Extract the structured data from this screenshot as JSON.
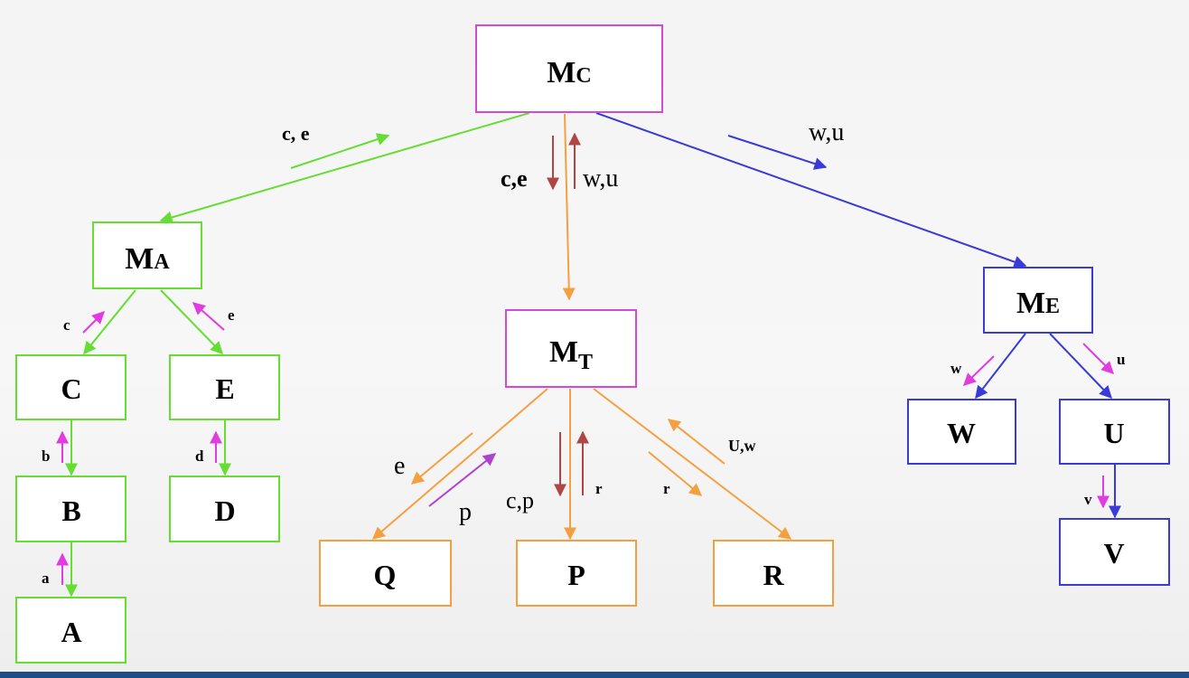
{
  "colors": {
    "magenta": "#d54ad5",
    "green": "#66dd33",
    "orange": "#f5a040",
    "blue": "#3a3ad8",
    "darkred": "#b04545",
    "pink_arrow": "#e03ce0",
    "footer": "#1f4e86"
  },
  "nodes": {
    "MC": {
      "main": "M",
      "sub": "C"
    },
    "MA": {
      "main": "M",
      "sub": "A"
    },
    "MT": {
      "main": "M",
      "sub": "T"
    },
    "ME": {
      "main": "M",
      "sub": "E"
    },
    "C": "C",
    "E": "E",
    "B": "B",
    "D": "D",
    "A": "A",
    "Q": "Q",
    "P": "P",
    "R": "R",
    "W": "W",
    "U": "U",
    "V": "V"
  },
  "edge_labels": {
    "mc_ma": "c, e",
    "mc_mt_down": "c,e",
    "mc_mt_up": "w,u",
    "mc_me": "w,u",
    "ma_c": "c",
    "ma_e": "e",
    "c_b": "b",
    "b_a": "a",
    "e_d": "d",
    "mt_q_e": "e",
    "mt_q_p": "p",
    "mt_p_down": "c,p",
    "mt_p_up": "r",
    "mt_r_down": "r",
    "mt_r_up": "U,w",
    "me_w": "w",
    "me_u": "u",
    "u_v": "v"
  }
}
